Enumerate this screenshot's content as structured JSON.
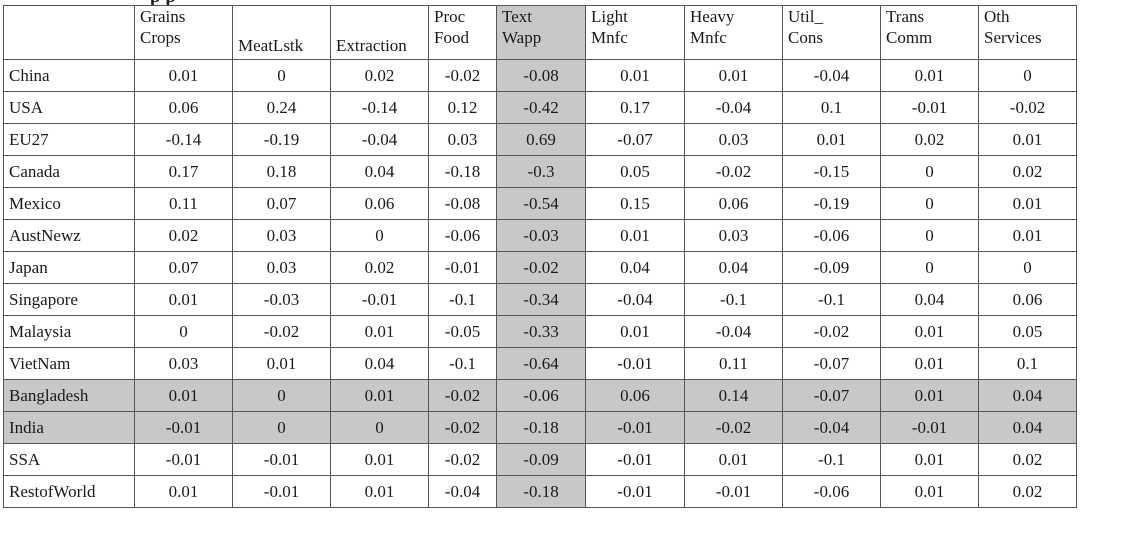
{
  "title_fragment": "p                                                                                       p",
  "columns": [
    {
      "label": "",
      "lines": [
        "",
        ""
      ]
    },
    {
      "label": "Grains Crops",
      "lines": [
        "Grains",
        "Crops"
      ]
    },
    {
      "label": "MeatLstk",
      "lines": [
        "",
        "MeatLstk"
      ]
    },
    {
      "label": "Extraction",
      "lines": [
        "",
        "Extraction"
      ]
    },
    {
      "label": "Proc Food",
      "lines": [
        "Proc",
        "Food"
      ]
    },
    {
      "label": "Text Wapp",
      "lines": [
        "Text",
        "Wapp"
      ]
    },
    {
      "label": "Light Mnfc",
      "lines": [
        "Light",
        "Mnfc"
      ]
    },
    {
      "label": "Heavy Mnfc",
      "lines": [
        "Heavy",
        "Mnfc"
      ]
    },
    {
      "label": "Util_ Cons",
      "lines": [
        "Util_",
        "Cons"
      ]
    },
    {
      "label": "Trans Comm",
      "lines": [
        "Trans",
        "Comm"
      ]
    },
    {
      "label": "Oth Services",
      "lines": [
        "Oth",
        "Services"
      ]
    }
  ],
  "rows": [
    {
      "region": "China",
      "values": [
        "0.01",
        "0",
        "0.02",
        "-0.02",
        "-0.08",
        "0.01",
        "0.01",
        "-0.04",
        "0.01",
        "0"
      ]
    },
    {
      "region": "USA",
      "values": [
        "0.06",
        "0.24",
        "-0.14",
        "0.12",
        "-0.42",
        "0.17",
        "-0.04",
        "0.1",
        "-0.01",
        "-0.02"
      ]
    },
    {
      "region": "EU27",
      "values": [
        "-0.14",
        "-0.19",
        "-0.04",
        "0.03",
        "0.69",
        "-0.07",
        "0.03",
        "0.01",
        "0.02",
        "0.01"
      ]
    },
    {
      "region": "Canada",
      "values": [
        "0.17",
        "0.18",
        "0.04",
        "-0.18",
        "-0.3",
        "0.05",
        "-0.02",
        "-0.15",
        "0",
        "0.02"
      ]
    },
    {
      "region": "Mexico",
      "values": [
        "0.11",
        "0.07",
        "0.06",
        "-0.08",
        "-0.54",
        "0.15",
        "0.06",
        "-0.19",
        "0",
        "0.01"
      ]
    },
    {
      "region": "AustNewz",
      "values": [
        "0.02",
        "0.03",
        "0",
        "-0.06",
        "-0.03",
        "0.01",
        "0.03",
        "-0.06",
        "0",
        "0.01"
      ]
    },
    {
      "region": "Japan",
      "values": [
        "0.07",
        "0.03",
        "0.02",
        "-0.01",
        "-0.02",
        "0.04",
        "0.04",
        "-0.09",
        "0",
        "0"
      ]
    },
    {
      "region": "Singapore",
      "values": [
        "0.01",
        "-0.03",
        "-0.01",
        "-0.1",
        "-0.34",
        "-0.04",
        "-0.1",
        "-0.1",
        "0.04",
        "0.06"
      ]
    },
    {
      "region": "Malaysia",
      "values": [
        "0",
        "-0.02",
        "0.01",
        "-0.05",
        "-0.33",
        "0.01",
        "-0.04",
        "-0.02",
        "0.01",
        "0.05"
      ]
    },
    {
      "region": "VietNam",
      "values": [
        "0.03",
        "0.01",
        "0.04",
        "-0.1",
        "-0.64",
        "-0.01",
        "0.11",
        "-0.07",
        "0.01",
        "0.1"
      ]
    },
    {
      "region": "Bangladesh",
      "values": [
        "0.01",
        "0",
        "0.01",
        "-0.02",
        "-0.06",
        "0.06",
        "0.14",
        "-0.07",
        "0.01",
        "0.04"
      ],
      "shaded": true
    },
    {
      "region": "India",
      "values": [
        "-0.01",
        "0",
        "0",
        "-0.02",
        "-0.18",
        "-0.01",
        "-0.02",
        "-0.04",
        "-0.01",
        "0.04"
      ],
      "shaded": true
    },
    {
      "region": "SSA",
      "values": [
        "-0.01",
        "-0.01",
        "0.01",
        "-0.02",
        "-0.09",
        "-0.01",
        "0.01",
        "-0.1",
        "0.01",
        "0.02"
      ]
    },
    {
      "region": "RestofWorld",
      "values": [
        "0.01",
        "-0.01",
        "0.01",
        "-0.04",
        "-0.18",
        "-0.01",
        "-0.01",
        "-0.06",
        "0.01",
        "0.02"
      ]
    }
  ],
  "highlight": {
    "column_index": 5,
    "shade_color": "#c8c8c8"
  }
}
